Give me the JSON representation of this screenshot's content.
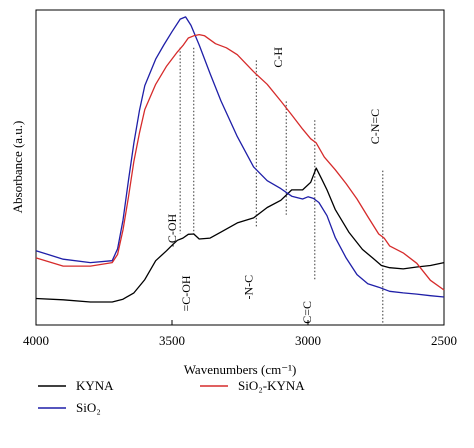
{
  "chart_data": {
    "type": "line",
    "xlabel": "Wavenumbers (cm⁻¹)",
    "ylabel": "Absorbance (a.u.)",
    "xlim": [
      4000,
      2500
    ],
    "x_reversed": true,
    "x_ticks": [
      {
        "value": 4000,
        "label": "4000"
      },
      {
        "value": 3500,
        "label": "3500"
      },
      {
        "value": 3000,
        "label": "3000"
      },
      {
        "value": 2500,
        "label": "2500"
      }
    ],
    "ylim": [
      0,
      100
    ],
    "y_tick_labels_shown": false,
    "grid": false,
    "legend_position": "bottom",
    "series": [
      {
        "name": "KYNA",
        "color": "#000000",
        "points": [
          [
            4000,
            8.4
          ],
          [
            3900,
            8.0
          ],
          [
            3800,
            7.3
          ],
          [
            3720,
            7.3
          ],
          [
            3680,
            8.2
          ],
          [
            3640,
            10.2
          ],
          [
            3600,
            14.4
          ],
          [
            3560,
            20.4
          ],
          [
            3520,
            23.6
          ],
          [
            3500,
            25.3
          ],
          [
            3480,
            26.9
          ],
          [
            3460,
            27.6
          ],
          [
            3440,
            28.8
          ],
          [
            3420,
            28.9
          ],
          [
            3400,
            27.3
          ],
          [
            3360,
            27.6
          ],
          [
            3320,
            29.5
          ],
          [
            3260,
            32.4
          ],
          [
            3200,
            34.0
          ],
          [
            3150,
            37.3
          ],
          [
            3100,
            39.6
          ],
          [
            3060,
            42.9
          ],
          [
            3020,
            42.9
          ],
          [
            2990,
            45.3
          ],
          [
            2970,
            49.8
          ],
          [
            2950,
            46.4
          ],
          [
            2930,
            42.9
          ],
          [
            2900,
            36.7
          ],
          [
            2850,
            29.5
          ],
          [
            2800,
            24.0
          ],
          [
            2760,
            21.1
          ],
          [
            2730,
            18.9
          ],
          [
            2700,
            18.2
          ],
          [
            2650,
            17.8
          ],
          [
            2600,
            18.4
          ],
          [
            2550,
            18.9
          ],
          [
            2500,
            19.8
          ]
        ]
      },
      {
        "name": "SiO₂",
        "color": "#1f1fa8",
        "points": [
          [
            4000,
            23.6
          ],
          [
            3900,
            20.9
          ],
          [
            3800,
            19.8
          ],
          [
            3720,
            20.4
          ],
          [
            3700,
            24.2
          ],
          [
            3680,
            33.3
          ],
          [
            3660,
            46.0
          ],
          [
            3640,
            57.8
          ],
          [
            3620,
            68.0
          ],
          [
            3600,
            76.0
          ],
          [
            3560,
            84.4
          ],
          [
            3530,
            88.9
          ],
          [
            3500,
            93.1
          ],
          [
            3470,
            97.1
          ],
          [
            3450,
            97.8
          ],
          [
            3430,
            95.1
          ],
          [
            3400,
            88.9
          ],
          [
            3360,
            79.8
          ],
          [
            3320,
            71.1
          ],
          [
            3260,
            59.8
          ],
          [
            3200,
            50.2
          ],
          [
            3150,
            45.8
          ],
          [
            3100,
            43.3
          ],
          [
            3060,
            40.9
          ],
          [
            3020,
            40.0
          ],
          [
            3000,
            40.7
          ],
          [
            2980,
            40.2
          ],
          [
            2960,
            38.9
          ],
          [
            2930,
            34.7
          ],
          [
            2900,
            27.8
          ],
          [
            2860,
            21.3
          ],
          [
            2820,
            16.0
          ],
          [
            2780,
            13.1
          ],
          [
            2740,
            12.0
          ],
          [
            2700,
            10.7
          ],
          [
            2650,
            10.2
          ],
          [
            2600,
            9.8
          ],
          [
            2550,
            9.3
          ],
          [
            2500,
            8.9
          ]
        ]
      },
      {
        "name": "SiO₂-KYNA",
        "color": "#d62b2b",
        "points": [
          [
            4000,
            21.3
          ],
          [
            3900,
            18.7
          ],
          [
            3800,
            18.7
          ],
          [
            3720,
            19.8
          ],
          [
            3700,
            22.4
          ],
          [
            3680,
            30.2
          ],
          [
            3660,
            40.7
          ],
          [
            3640,
            52.0
          ],
          [
            3620,
            60.9
          ],
          [
            3600,
            68.4
          ],
          [
            3560,
            76.4
          ],
          [
            3520,
            82.2
          ],
          [
            3480,
            86.7
          ],
          [
            3460,
            88.7
          ],
          [
            3440,
            91.1
          ],
          [
            3420,
            91.8
          ],
          [
            3400,
            92.2
          ],
          [
            3380,
            91.8
          ],
          [
            3340,
            89.3
          ],
          [
            3300,
            88.0
          ],
          [
            3260,
            85.8
          ],
          [
            3200,
            80.4
          ],
          [
            3150,
            76.4
          ],
          [
            3100,
            71.1
          ],
          [
            3060,
            66.7
          ],
          [
            3020,
            62.2
          ],
          [
            2990,
            59.1
          ],
          [
            2970,
            57.8
          ],
          [
            2940,
            53.3
          ],
          [
            2900,
            49.3
          ],
          [
            2860,
            44.9
          ],
          [
            2820,
            40.0
          ],
          [
            2780,
            34.4
          ],
          [
            2740,
            28.9
          ],
          [
            2720,
            27.6
          ],
          [
            2700,
            25.1
          ],
          [
            2650,
            22.9
          ],
          [
            2600,
            19.6
          ],
          [
            2550,
            14.2
          ],
          [
            2500,
            11.1
          ]
        ]
      }
    ],
    "annotations": [
      {
        "label": "-C-OH",
        "x": 3470,
        "y": 30,
        "orientation": "vertical",
        "line_top": 88,
        "line_bottom": 29
      },
      {
        "label": "=C-OH",
        "x": 3420,
        "y": 10,
        "orientation": "vertical",
        "line_top": 88,
        "line_bottom": 29
      },
      {
        "label": "-N-C",
        "x": 3190,
        "y": 12,
        "orientation": "vertical",
        "line_top": 84,
        "line_bottom": 31
      },
      {
        "label": "C-H",
        "x": 3080,
        "y": 85,
        "orientation": "vertical",
        "line_top": 71,
        "line_bottom": 35
      },
      {
        "label": "C=C",
        "x": 2975,
        "y": 4,
        "orientation": "vertical",
        "line_top": 65,
        "line_bottom": 14
      },
      {
        "label": "C-N=C",
        "x": 2725,
        "y": 63,
        "orientation": "vertical",
        "line_top": 49,
        "line_bottom": 0
      }
    ]
  }
}
